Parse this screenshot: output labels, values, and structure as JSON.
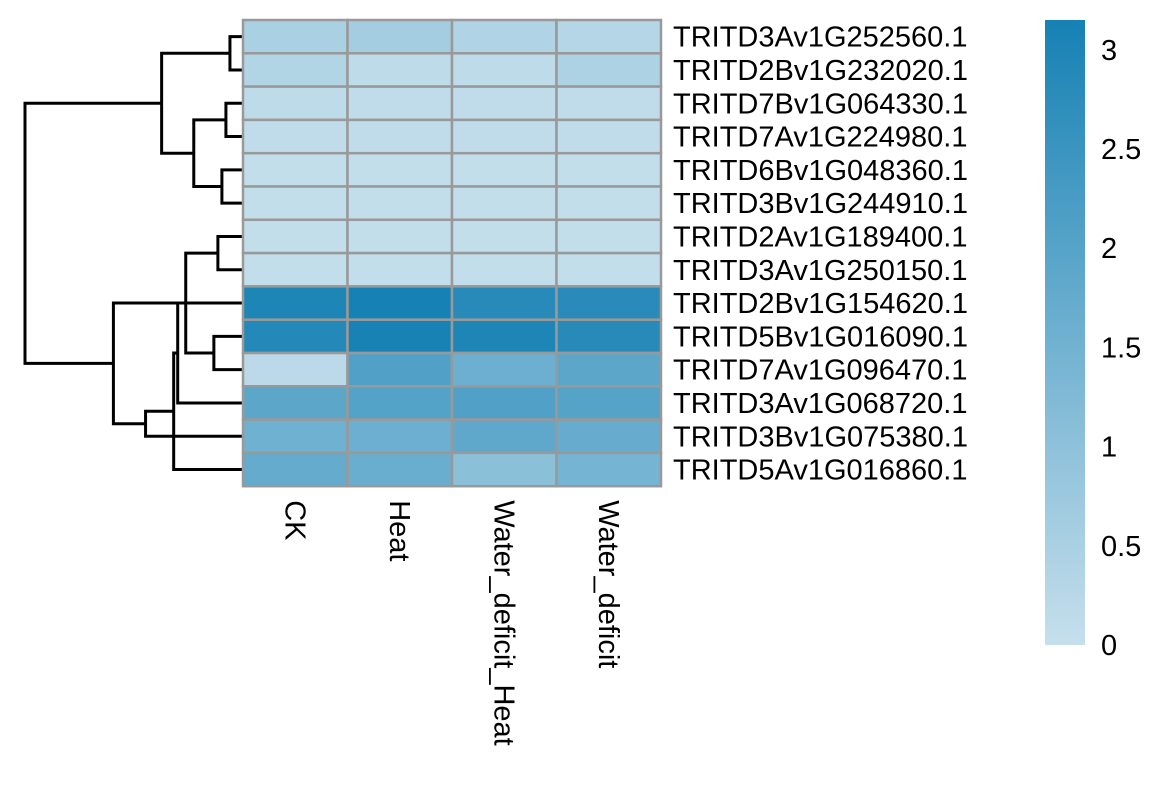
{
  "chart_data": {
    "type": "heatmap",
    "title": "",
    "xlabel": "",
    "ylabel": "",
    "columns": [
      "CK",
      "Heat",
      "Water_deficit_Heat",
      "Water_deficit"
    ],
    "rows": [
      "TRITD3Av1G252560.1",
      "TRITD2Bv1G232020.1",
      "TRITD7Bv1G064330.1",
      "TRITD7Av1G224980.1",
      "TRITD6Bv1G048360.1",
      "TRITD3Bv1G244910.1",
      "TRITD2Av1G189400.1",
      "TRITD3Av1G250150.1",
      "TRITD2Bv1G154620.1",
      "TRITD5Bv1G016090.1",
      "TRITD7Av1G096470.1",
      "TRITD3Av1G068720.1",
      "TRITD3Bv1G075380.1",
      "TRITD5Av1G016860.1"
    ],
    "values": [
      [
        0.5,
        0.6,
        0.4,
        0.3
      ],
      [
        0.35,
        0.15,
        0.15,
        0.45
      ],
      [
        0.15,
        0.1,
        0.1,
        0.1
      ],
      [
        0.1,
        0.1,
        0.1,
        0.1
      ],
      [
        0.05,
        0.05,
        0.05,
        0.05
      ],
      [
        0.05,
        0.05,
        0.05,
        0.05
      ],
      [
        0.05,
        0.05,
        0.05,
        0.05
      ],
      [
        0.05,
        0.05,
        0.05,
        0.05
      ],
      [
        3.0,
        3.15,
        2.85,
        2.8
      ],
      [
        2.9,
        3.1,
        3.0,
        2.85
      ],
      [
        0.2,
        2.1,
        1.6,
        1.9
      ],
      [
        1.9,
        2.05,
        2.1,
        2.0
      ],
      [
        1.55,
        1.6,
        1.85,
        1.7
      ],
      [
        1.75,
        1.65,
        1.05,
        1.45
      ]
    ],
    "color_scale": {
      "min": 0,
      "max": 3.15,
      "low_color": "#c6dfec",
      "high_color": "#1681b4",
      "ticks": [
        "0",
        "0.5",
        "1",
        "1.5",
        "2",
        "2.5",
        "3"
      ]
    },
    "grid_color": "#999999",
    "dendrogram": {
      "side": "left",
      "merges": [
        [
          1,
          2,
          0.15
        ],
        [
          3,
          4,
          0.2
        ],
        [
          5,
          6,
          0.25
        ],
        [
          7,
          8,
          0.3
        ],
        [
          10,
          11,
          0.35
        ],
        [
          -2,
          -3,
          0.6
        ],
        [
          -4,
          -5,
          0.7
        ],
        [
          9,
          12,
          0.8
        ],
        [
          -1,
          -6,
          1.0
        ],
        [
          14,
          -8,
          0.85
        ],
        [
          13,
          -10,
          1.2
        ],
        [
          -7,
          -11,
          1.6
        ],
        [
          -9,
          -12,
          2.7
        ]
      ]
    },
    "legend_position": "right"
  }
}
